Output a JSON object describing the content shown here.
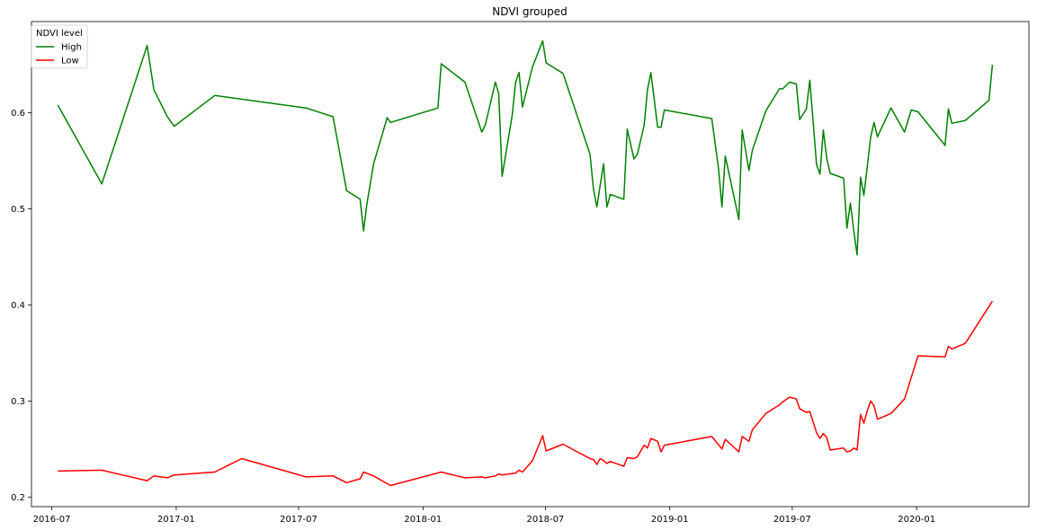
{
  "chart_data": {
    "type": "line",
    "title": "NDVI grouped",
    "xlabel": "",
    "ylabel": "",
    "x_axis_type": "date",
    "xlim": [
      "2016-06-01",
      "2020-06-15"
    ],
    "ylim": [
      0.19,
      0.695
    ],
    "x_ticks": [
      {
        "date": "2016-07-01",
        "label": "2016-07"
      },
      {
        "date": "2017-01-01",
        "label": "2017-01"
      },
      {
        "date": "2017-07-01",
        "label": "2017-07"
      },
      {
        "date": "2018-01-01",
        "label": "2018-01"
      },
      {
        "date": "2018-07-01",
        "label": "2018-07"
      },
      {
        "date": "2019-01-01",
        "label": "2019-01"
      },
      {
        "date": "2019-07-01",
        "label": "2019-07"
      },
      {
        "date": "2020-01-01",
        "label": "2020-01"
      }
    ],
    "y_ticks": [
      {
        "value": 0.2,
        "label": "0.2"
      },
      {
        "value": 0.3,
        "label": "0.3"
      },
      {
        "value": 0.4,
        "label": "0.4"
      },
      {
        "value": 0.5,
        "label": "0.5"
      },
      {
        "value": 0.6,
        "label": "0.6"
      }
    ],
    "grid": false,
    "legend": {
      "title": "NDVI level",
      "placement": "top-left"
    },
    "series": [
      {
        "name": "High",
        "color": "#008000",
        "points": [
          [
            "2016-07-10",
            0.608
          ],
          [
            "2016-09-13",
            0.526
          ],
          [
            "2016-11-19",
            0.67
          ],
          [
            "2016-11-29",
            0.624
          ],
          [
            "2016-12-19",
            0.596
          ],
          [
            "2016-12-29",
            0.586
          ],
          [
            "2017-02-27",
            0.618
          ],
          [
            "2017-07-12",
            0.605
          ],
          [
            "2017-08-21",
            0.596
          ],
          [
            "2017-09-10",
            0.519
          ],
          [
            "2017-09-30",
            0.51
          ],
          [
            "2017-10-05",
            0.477
          ],
          [
            "2017-10-10",
            0.505
          ],
          [
            "2017-10-20",
            0.547
          ],
          [
            "2017-11-09",
            0.595
          ],
          [
            "2017-11-14",
            0.59
          ],
          [
            "2018-01-23",
            0.605
          ],
          [
            "2018-01-28",
            0.651
          ],
          [
            "2018-03-04",
            0.632
          ],
          [
            "2018-03-29",
            0.58
          ],
          [
            "2018-04-03",
            0.587
          ],
          [
            "2018-04-18",
            0.632
          ],
          [
            "2018-04-23",
            0.62
          ],
          [
            "2018-04-28",
            0.534
          ],
          [
            "2018-05-13",
            0.598
          ],
          [
            "2018-05-18",
            0.632
          ],
          [
            "2018-05-23",
            0.642
          ],
          [
            "2018-05-28",
            0.606
          ],
          [
            "2018-06-12",
            0.648
          ],
          [
            "2018-06-27",
            0.675
          ],
          [
            "2018-07-02",
            0.652
          ],
          [
            "2018-07-27",
            0.641
          ],
          [
            "2018-09-05",
            0.557
          ],
          [
            "2018-09-10",
            0.521
          ],
          [
            "2018-09-15",
            0.502
          ],
          [
            "2018-09-25",
            0.547
          ],
          [
            "2018-09-30",
            0.502
          ],
          [
            "2018-10-05",
            0.515
          ],
          [
            "2018-10-25",
            0.51
          ],
          [
            "2018-10-30",
            0.583
          ],
          [
            "2018-11-09",
            0.552
          ],
          [
            "2018-11-14",
            0.557
          ],
          [
            "2018-11-24",
            0.587
          ],
          [
            "2018-11-29",
            0.624
          ],
          [
            "2018-12-04",
            0.642
          ],
          [
            "2018-12-14",
            0.585
          ],
          [
            "2018-12-19",
            0.585
          ],
          [
            "2018-12-24",
            0.603
          ],
          [
            "2019-03-04",
            0.594
          ],
          [
            "2019-03-14",
            0.542
          ],
          [
            "2019-03-19",
            0.502
          ],
          [
            "2019-03-24",
            0.555
          ],
          [
            "2019-04-13",
            0.489
          ],
          [
            "2019-04-18",
            0.582
          ],
          [
            "2019-04-23",
            0.561
          ],
          [
            "2019-04-28",
            0.54
          ],
          [
            "2019-05-03",
            0.561
          ],
          [
            "2019-05-23",
            0.602
          ],
          [
            "2019-06-12",
            0.625
          ],
          [
            "2019-06-17",
            0.625
          ],
          [
            "2019-06-27",
            0.632
          ],
          [
            "2019-07-07",
            0.63
          ],
          [
            "2019-07-12",
            0.593
          ],
          [
            "2019-07-22",
            0.604
          ],
          [
            "2019-07-27",
            0.634
          ],
          [
            "2019-08-06",
            0.546
          ],
          [
            "2019-08-11",
            0.536
          ],
          [
            "2019-08-16",
            0.582
          ],
          [
            "2019-08-21",
            0.553
          ],
          [
            "2019-08-26",
            0.537
          ],
          [
            "2019-09-15",
            0.532
          ],
          [
            "2019-09-20",
            0.48
          ],
          [
            "2019-09-25",
            0.506
          ],
          [
            "2019-09-30",
            0.477
          ],
          [
            "2019-10-05",
            0.452
          ],
          [
            "2019-10-10",
            0.533
          ],
          [
            "2019-10-15",
            0.514
          ],
          [
            "2019-10-20",
            0.544
          ],
          [
            "2019-10-25",
            0.575
          ],
          [
            "2019-10-30",
            0.59
          ],
          [
            "2019-11-04",
            0.575
          ],
          [
            "2019-11-24",
            0.605
          ],
          [
            "2019-12-14",
            0.58
          ],
          [
            "2019-12-24",
            0.603
          ],
          [
            "2020-01-03",
            0.601
          ],
          [
            "2020-02-12",
            0.566
          ],
          [
            "2020-02-17",
            0.604
          ],
          [
            "2020-02-22",
            0.589
          ],
          [
            "2020-03-13",
            0.592
          ],
          [
            "2020-04-17",
            0.613
          ],
          [
            "2020-04-22",
            0.65
          ]
        ]
      },
      {
        "name": "Low",
        "color": "#ff0000",
        "points": [
          [
            "2016-07-10",
            0.227
          ],
          [
            "2016-09-13",
            0.228
          ],
          [
            "2016-11-19",
            0.217
          ],
          [
            "2016-11-29",
            0.222
          ],
          [
            "2016-12-19",
            0.22
          ],
          [
            "2016-12-29",
            0.223
          ],
          [
            "2017-02-27",
            0.226
          ],
          [
            "2017-04-08",
            0.24
          ],
          [
            "2017-07-12",
            0.221
          ],
          [
            "2017-08-21",
            0.222
          ],
          [
            "2017-09-10",
            0.215
          ],
          [
            "2017-09-30",
            0.219
          ],
          [
            "2017-10-05",
            0.226
          ],
          [
            "2017-10-20",
            0.222
          ],
          [
            "2017-11-14",
            0.212
          ],
          [
            "2018-01-28",
            0.226
          ],
          [
            "2018-03-04",
            0.22
          ],
          [
            "2018-03-29",
            0.221
          ],
          [
            "2018-04-03",
            0.22
          ],
          [
            "2018-04-18",
            0.222
          ],
          [
            "2018-04-23",
            0.224
          ],
          [
            "2018-04-28",
            0.223
          ],
          [
            "2018-05-18",
            0.225
          ],
          [
            "2018-05-23",
            0.228
          ],
          [
            "2018-05-28",
            0.226
          ],
          [
            "2018-06-12",
            0.238
          ],
          [
            "2018-06-27",
            0.264
          ],
          [
            "2018-07-02",
            0.248
          ],
          [
            "2018-07-27",
            0.255
          ],
          [
            "2018-09-05",
            0.24
          ],
          [
            "2018-09-10",
            0.239
          ],
          [
            "2018-09-15",
            0.234
          ],
          [
            "2018-09-20",
            0.24
          ],
          [
            "2018-09-25",
            0.238
          ],
          [
            "2018-09-30",
            0.235
          ],
          [
            "2018-10-05",
            0.237
          ],
          [
            "2018-10-25",
            0.232
          ],
          [
            "2018-10-30",
            0.241
          ],
          [
            "2018-11-09",
            0.24
          ],
          [
            "2018-11-14",
            0.242
          ],
          [
            "2018-11-24",
            0.254
          ],
          [
            "2018-11-29",
            0.251
          ],
          [
            "2018-12-04",
            0.261
          ],
          [
            "2018-12-14",
            0.258
          ],
          [
            "2018-12-19",
            0.247
          ],
          [
            "2018-12-24",
            0.254
          ],
          [
            "2019-03-04",
            0.263
          ],
          [
            "2019-03-19",
            0.25
          ],
          [
            "2019-03-24",
            0.26
          ],
          [
            "2019-04-13",
            0.247
          ],
          [
            "2019-04-18",
            0.263
          ],
          [
            "2019-04-28",
            0.258
          ],
          [
            "2019-05-03",
            0.27
          ],
          [
            "2019-05-23",
            0.287
          ],
          [
            "2019-06-12",
            0.296
          ],
          [
            "2019-06-17",
            0.299
          ],
          [
            "2019-06-27",
            0.304
          ],
          [
            "2019-07-07",
            0.302
          ],
          [
            "2019-07-12",
            0.292
          ],
          [
            "2019-07-22",
            0.288
          ],
          [
            "2019-07-27",
            0.289
          ],
          [
            "2019-08-06",
            0.267
          ],
          [
            "2019-08-11",
            0.261
          ],
          [
            "2019-08-16",
            0.266
          ],
          [
            "2019-08-21",
            0.262
          ],
          [
            "2019-08-26",
            0.249
          ],
          [
            "2019-09-15",
            0.251
          ],
          [
            "2019-09-20",
            0.247
          ],
          [
            "2019-09-25",
            0.248
          ],
          [
            "2019-09-30",
            0.251
          ],
          [
            "2019-10-05",
            0.249
          ],
          [
            "2019-10-10",
            0.286
          ],
          [
            "2019-10-15",
            0.277
          ],
          [
            "2019-10-20",
            0.29
          ],
          [
            "2019-10-25",
            0.3
          ],
          [
            "2019-10-30",
            0.295
          ],
          [
            "2019-11-04",
            0.281
          ],
          [
            "2019-11-24",
            0.287
          ],
          [
            "2019-12-14",
            0.302
          ],
          [
            "2020-01-03",
            0.347
          ],
          [
            "2020-02-12",
            0.346
          ],
          [
            "2020-02-17",
            0.357
          ],
          [
            "2020-02-22",
            0.354
          ],
          [
            "2020-03-13",
            0.36
          ],
          [
            "2020-04-22",
            0.404
          ]
        ]
      }
    ]
  }
}
